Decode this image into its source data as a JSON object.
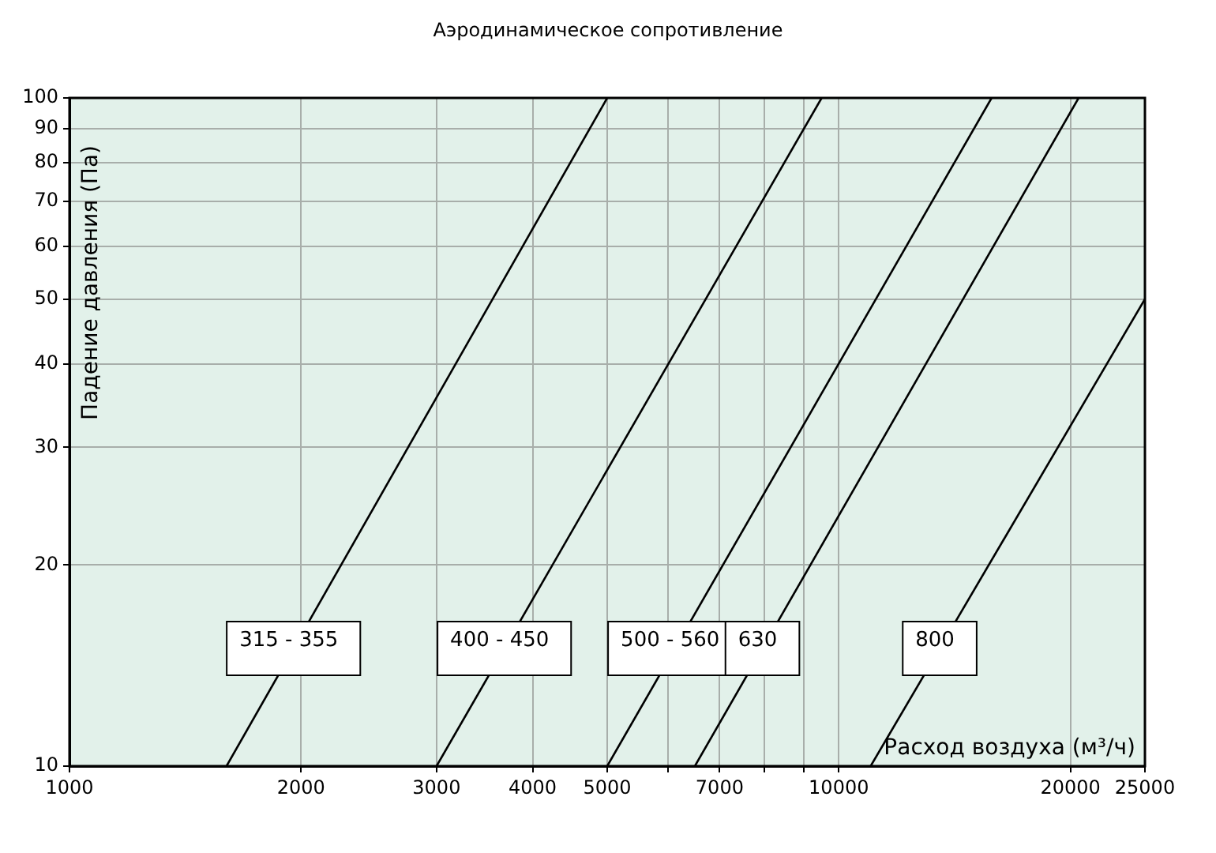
{
  "chart_data": {
    "type": "line",
    "title": "Аэродинамическое сопротивление",
    "xlabel": "Расход воздуха (м³/ч)",
    "ylabel": "Падение давления (Па)",
    "log": "xy",
    "grid": true,
    "legend": false,
    "marker": "none",
    "line_style": "solid",
    "xlim": [
      1000,
      25000
    ],
    "ylim": [
      10,
      100
    ],
    "xticks": [
      1000,
      2000,
      3000,
      4000,
      5000,
      {
        "value": 6000,
        "label": null
      },
      7000,
      {
        "value": 8000,
        "label": null
      },
      {
        "value": 9000,
        "label": null
      },
      10000,
      20000,
      25000
    ],
    "yticks": [
      10,
      20,
      30,
      40,
      50,
      60,
      70,
      80,
      90,
      100
    ],
    "series": [
      {
        "name": "315 - 355",
        "color": "#000000",
        "x": [
          1600,
          5000
        ],
        "values": [
          10,
          100
        ]
      },
      {
        "name": "400 - 450",
        "color": "#000000",
        "x": [
          3000,
          9500
        ],
        "values": [
          10,
          100
        ]
      },
      {
        "name": "500 - 560",
        "color": "#000000",
        "x": [
          5000,
          15800
        ],
        "values": [
          10,
          100
        ]
      },
      {
        "name": "630",
        "color": "#000000",
        "x": [
          6500,
          20500
        ],
        "values": [
          10,
          100
        ]
      },
      {
        "name": "800",
        "color": "#000000",
        "x": [
          11000,
          25000
        ],
        "values": [
          10,
          50
        ]
      }
    ]
  }
}
